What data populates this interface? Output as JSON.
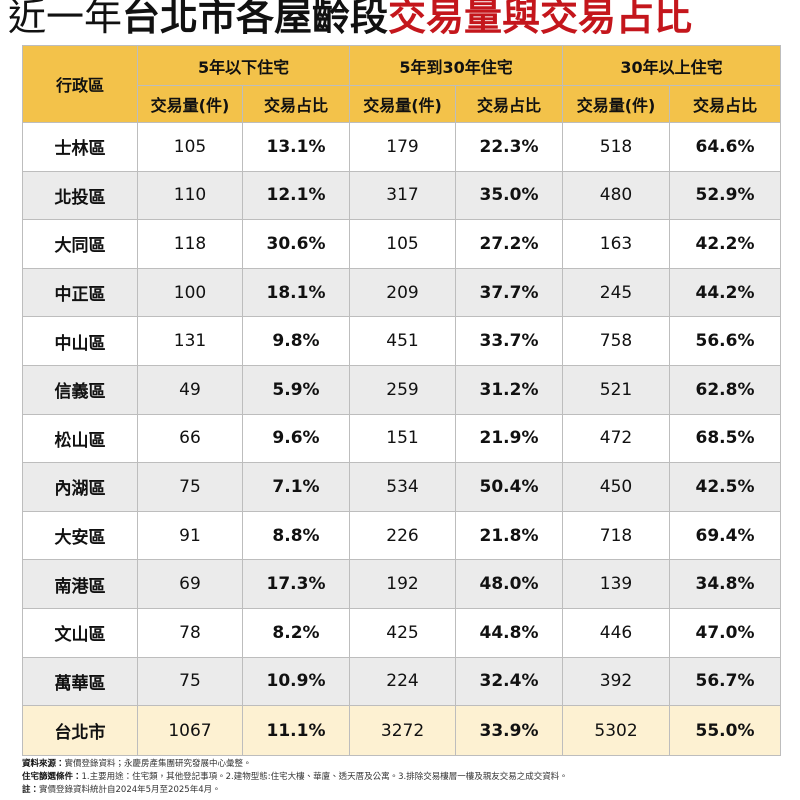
{
  "title": {
    "part1": "近一年",
    "part2": "台北市各屋齡段",
    "part3": "交易量與交易占比"
  },
  "header": {
    "district": "行政區",
    "groups": [
      "5年以下住宅",
      "5年到30年住宅",
      "30年以上住宅"
    ],
    "subheaders": [
      "交易量(件)",
      "交易占比",
      "交易量(件)",
      "交易占比",
      "交易量(件)",
      "交易占比"
    ]
  },
  "rows": [
    [
      "士林區",
      "105",
      "13.1%",
      "179",
      "22.3%",
      "518",
      "64.6%"
    ],
    [
      "北投區",
      "110",
      "12.1%",
      "317",
      "35.0%",
      "480",
      "52.9%"
    ],
    [
      "大同區",
      "118",
      "30.6%",
      "105",
      "27.2%",
      "163",
      "42.2%"
    ],
    [
      "中正區",
      "100",
      "18.1%",
      "209",
      "37.7%",
      "245",
      "44.2%"
    ],
    [
      "中山區",
      "131",
      "9.8%",
      "451",
      "33.7%",
      "758",
      "56.6%"
    ],
    [
      "信義區",
      "49",
      "5.9%",
      "259",
      "31.2%",
      "521",
      "62.8%"
    ],
    [
      "松山區",
      "66",
      "9.6%",
      "151",
      "21.9%",
      "472",
      "68.5%"
    ],
    [
      "內湖區",
      "75",
      "7.1%",
      "534",
      "50.4%",
      "450",
      "42.5%"
    ],
    [
      "大安區",
      "91",
      "8.8%",
      "226",
      "21.8%",
      "718",
      "69.4%"
    ],
    [
      "南港區",
      "69",
      "17.3%",
      "192",
      "48.0%",
      "139",
      "34.8%"
    ],
    [
      "文山區",
      "78",
      "8.2%",
      "425",
      "44.8%",
      "446",
      "47.0%"
    ],
    [
      "萬華區",
      "75",
      "10.9%",
      "224",
      "32.4%",
      "392",
      "56.7%"
    ]
  ],
  "total": [
    "台北市",
    "1067",
    "11.1%",
    "3272",
    "33.9%",
    "5302",
    "55.0%"
  ],
  "notes": [
    {
      "label": "資料來源：",
      "text": "實價登錄資料；永慶房產集團研究發展中心彙整。"
    },
    {
      "label": "住宅篩選條件：",
      "text": "1.主要用途：住宅類，其他登記事項。2.建物型態:住宅大樓、華廈、透天厝及公寓。3.排除交易樓層一樓及親友交易之成交資料。"
    },
    {
      "label": "註：",
      "text": "實價登錄資料統計自2024年5月至2025年4月。"
    }
  ]
}
